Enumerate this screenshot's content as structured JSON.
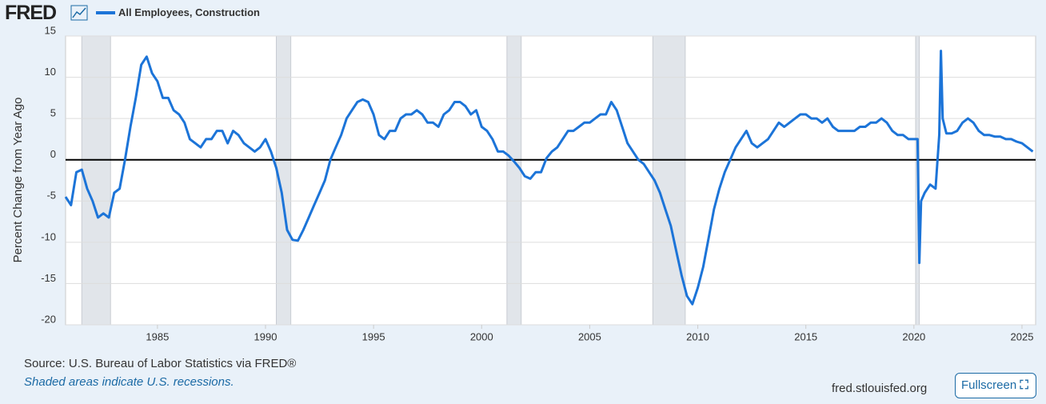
{
  "header": {
    "logo": "FRED"
  },
  "chart_data": {
    "type": "line",
    "y_label": "Percent Change from Year Ago",
    "xlim": [
      1980.75,
      2025.63
    ],
    "xticks": [
      1985,
      1990,
      1995,
      2000,
      2005,
      2010,
      2015,
      2020,
      2025
    ],
    "ylim": [
      -20,
      15
    ],
    "yticks": [
      -20,
      -15,
      -10,
      -5,
      0,
      5,
      10,
      15
    ],
    "grid": true,
    "recessions": [
      [
        1981.5,
        1982.83
      ],
      [
        1990.5,
        1991.17
      ],
      [
        2001.17,
        2001.83
      ],
      [
        2007.92,
        2009.42
      ],
      [
        2020.08,
        2020.25
      ]
    ],
    "x": [
      1980.75,
      1981,
      1981.25,
      1981.5,
      1981.75,
      1982,
      1982.25,
      1982.5,
      1982.75,
      1983,
      1983.25,
      1983.5,
      1983.75,
      1984,
      1984.25,
      1984.5,
      1984.75,
      1985,
      1985.25,
      1985.5,
      1985.75,
      1986,
      1986.25,
      1986.5,
      1986.75,
      1987,
      1987.25,
      1987.5,
      1987.75,
      1988,
      1988.25,
      1988.5,
      1988.75,
      1989,
      1989.25,
      1989.5,
      1989.75,
      1990,
      1990.25,
      1990.5,
      1990.75,
      1991,
      1991.25,
      1991.5,
      1991.75,
      1992,
      1992.25,
      1992.5,
      1992.75,
      1993,
      1993.25,
      1993.5,
      1993.75,
      1994,
      1994.25,
      1994.5,
      1994.75,
      1995,
      1995.25,
      1995.5,
      1995.75,
      1996,
      1996.25,
      1996.5,
      1996.75,
      1997,
      1997.25,
      1997.5,
      1997.75,
      1998,
      1998.25,
      1998.5,
      1998.75,
      1999,
      1999.25,
      1999.5,
      1999.75,
      2000,
      2000.25,
      2000.5,
      2000.75,
      2001,
      2001.25,
      2001.5,
      2001.75,
      2002,
      2002.25,
      2002.5,
      2002.75,
      2003,
      2003.25,
      2003.5,
      2003.75,
      2004,
      2004.25,
      2004.5,
      2004.75,
      2005,
      2005.25,
      2005.5,
      2005.75,
      2006,
      2006.25,
      2006.5,
      2006.75,
      2007,
      2007.25,
      2007.5,
      2007.75,
      2008,
      2008.25,
      2008.5,
      2008.75,
      2009,
      2009.25,
      2009.5,
      2009.75,
      2010,
      2010.25,
      2010.5,
      2010.75,
      2011,
      2011.25,
      2011.5,
      2011.75,
      2012,
      2012.25,
      2012.5,
      2012.75,
      2013,
      2013.25,
      2013.5,
      2013.75,
      2014,
      2014.25,
      2014.5,
      2014.75,
      2015,
      2015.25,
      2015.5,
      2015.75,
      2016,
      2016.25,
      2016.5,
      2016.75,
      2017,
      2017.25,
      2017.5,
      2017.75,
      2018,
      2018.25,
      2018.5,
      2018.75,
      2019,
      2019.25,
      2019.5,
      2019.75,
      2020,
      2020.17,
      2020.25,
      2020.33,
      2020.5,
      2020.75,
      2021,
      2021.17,
      2021.25,
      2021.33,
      2021.5,
      2021.75,
      2022,
      2022.25,
      2022.5,
      2022.75,
      2023,
      2023.25,
      2023.5,
      2023.75,
      2024,
      2024.25,
      2024.5,
      2024.75,
      2025,
      2025.25,
      2025.5
    ],
    "series": [
      {
        "name": "All Employees, Construction",
        "color": "#1c74d8",
        "values": [
          -4.5,
          -5.5,
          -1.5,
          -1.2,
          -3.5,
          -5,
          -7,
          -6.5,
          -7,
          -4,
          -3.5,
          0,
          4,
          7.5,
          11.5,
          12.5,
          10.5,
          9.5,
          7.5,
          7.5,
          6,
          5.5,
          4.5,
          2.5,
          2,
          1.5,
          2.5,
          2.5,
          3.5,
          3.5,
          2,
          3.5,
          3,
          2,
          1.5,
          1,
          1.5,
          2.5,
          1,
          -1,
          -4,
          -8.5,
          -9.7,
          -9.8,
          -8.5,
          -7,
          -5.5,
          -4,
          -2.5,
          0,
          1.5,
          3,
          5,
          6,
          7,
          7.3,
          7,
          5.5,
          3,
          2.5,
          3.5,
          3.5,
          5,
          5.5,
          5.5,
          6,
          5.5,
          4.5,
          4.5,
          4,
          5.5,
          6,
          7,
          7,
          6.5,
          5.5,
          6,
          4,
          3.5,
          2.5,
          1,
          1,
          0.5,
          -0.2,
          -1,
          -2,
          -2.3,
          -1.5,
          -1.5,
          0.2,
          1,
          1.5,
          2.5,
          3.5,
          3.5,
          4,
          4.5,
          4.5,
          5,
          5.5,
          5.5,
          7,
          6,
          4,
          2,
          1,
          0,
          -0.5,
          -1.5,
          -2.5,
          -4,
          -6,
          -8,
          -11,
          -14,
          -16.5,
          -17.5,
          -15.5,
          -13,
          -9.5,
          -6,
          -3.5,
          -1.5,
          0,
          1.5,
          2.5,
          3.5,
          2,
          1.5,
          2,
          2.5,
          3.5,
          4.5,
          4,
          4.5,
          5,
          5.5,
          5.5,
          5,
          5,
          4.5,
          5,
          4,
          3.5,
          3.5,
          3.5,
          3.5,
          4,
          4,
          4.5,
          4.5,
          5,
          4.5,
          3.5,
          3,
          3,
          2.5,
          2.5,
          2.5,
          -12.5,
          -5,
          -4,
          -3,
          -3.5,
          3,
          13.2,
          5,
          3.2,
          3.2,
          3.5,
          4.5,
          5,
          4.5,
          3.5,
          3,
          3,
          2.8,
          2.8,
          2.5,
          2.5,
          2.2,
          2,
          1.5,
          1
        ]
      }
    ]
  },
  "footer": {
    "source": "Source: U.S. Bureau of Labor Statistics via FRED®",
    "note": "Shaded areas indicate U.S. recessions.",
    "url": "fred.stlouisfed.org",
    "button": "Fullscreen"
  }
}
